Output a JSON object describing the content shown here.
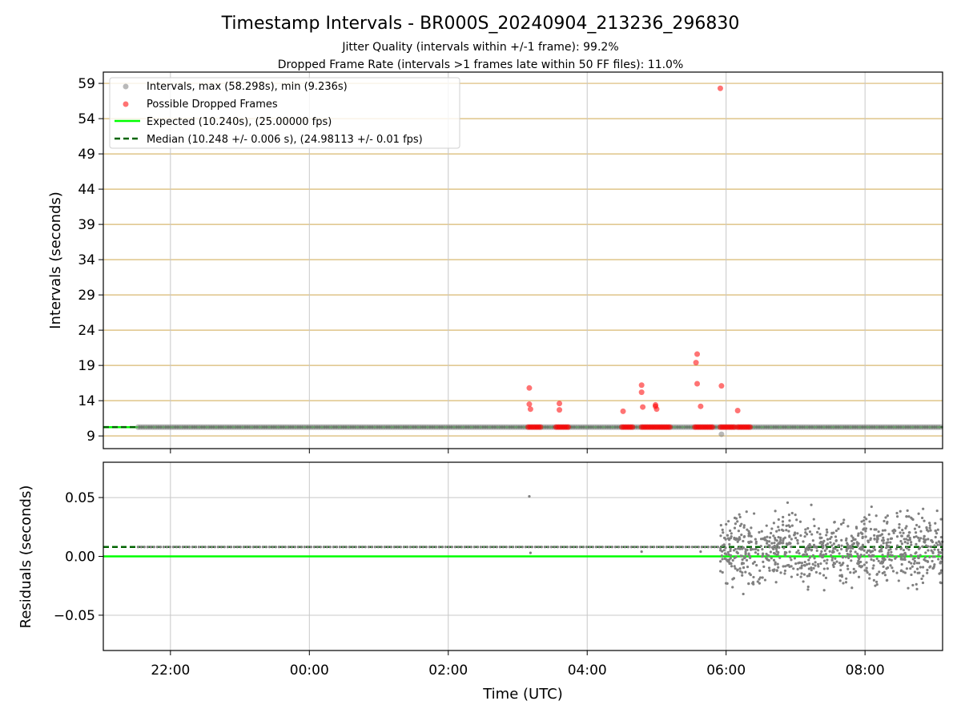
{
  "chart_data": [
    {
      "type": "scatter",
      "title": "Timestamp Intervals - BR000S_20240904_213236_296830",
      "subtitle_1": "Jitter Quality (intervals within +/-1 frame): 99.2%",
      "subtitle_2": "Dropped Frame Rate (intervals >1 frames late within 50 FF files): 11.0%",
      "xlabel": "",
      "ylabel": "Intervals (seconds)",
      "ylim": [
        7.2,
        60.6
      ],
      "yticks": [
        9,
        14,
        19,
        24,
        29,
        34,
        39,
        44,
        49,
        54,
        59
      ],
      "ytick_labels": [
        "9",
        "14",
        "19",
        "24",
        "29",
        "34",
        "39",
        "44",
        "49",
        "54",
        "59"
      ],
      "grid": true,
      "legend_position": "upper-left",
      "series": [
        {
          "name": "Intervals, max (58.298s), min (9.236s)",
          "color": "#808080",
          "x_range": [
            "21:32",
            "09:07"
          ],
          "baseline_value": 10.248
        },
        {
          "name": "Possible Dropped Frames",
          "color": "#ff0000",
          "points": [
            [
              "03:10",
              15.8
            ],
            [
              "03:10",
              13.5
            ],
            [
              "03:11",
              12.8
            ],
            [
              "03:36",
              13.6
            ],
            [
              "03:36",
              12.7
            ],
            [
              "04:31",
              12.5
            ],
            [
              "04:47",
              16.2
            ],
            [
              "04:47",
              15.2
            ],
            [
              "04:48",
              13.1
            ],
            [
              "04:59",
              13.4
            ],
            [
              "04:59",
              13.2
            ],
            [
              "05:00",
              12.8
            ],
            [
              "05:34",
              19.4
            ],
            [
              "05:35",
              20.6
            ],
            [
              "05:35",
              16.4
            ],
            [
              "05:38",
              13.2
            ],
            [
              "05:55",
              58.3
            ],
            [
              "05:56",
              16.1
            ],
            [
              "06:10",
              12.6
            ]
          ],
          "clusters": [
            [
              "03:09",
              "03:20"
            ],
            [
              "03:33",
              "03:44"
            ],
            [
              "04:30",
              "04:40"
            ],
            [
              "04:47",
              "05:12"
            ],
            [
              "05:33",
              "05:49"
            ],
            [
              "05:55",
              "06:08"
            ],
            [
              "06:10",
              "06:21"
            ]
          ],
          "cluster_value": 10.25
        },
        {
          "name": "Expected (10.240s), (25.00000 fps)",
          "color": "#00ff00",
          "style": "solid",
          "value": 10.24
        },
        {
          "name": "Median (10.248 +/- 0.006 s), (24.98113 +/- 0.01 fps)",
          "color": "#006400",
          "style": "dashed",
          "value": 10.248
        }
      ],
      "extra_points": [
        [
          "05:56",
          9.236
        ]
      ]
    },
    {
      "type": "scatter",
      "title": "",
      "xlabel": "Time (UTC)",
      "ylabel": "Residuals (seconds)",
      "ylim": [
        -0.08,
        0.08
      ],
      "yticks": [
        -0.05,
        0,
        0.05
      ],
      "ytick_labels": [
        "−0.05",
        "0.00",
        "0.05"
      ],
      "xticks": [
        "22:00",
        "00:00",
        "02:00",
        "04:00",
        "06:00",
        "08:00"
      ],
      "xlim": [
        "21:02",
        "09:07"
      ],
      "grid": true,
      "series": [
        {
          "name": "Residuals",
          "color": "#808080",
          "pre_0555_value": 0.008,
          "post_0555_range": [
            -0.036,
            0.049
          ],
          "notable_points": [
            [
              "03:10",
              0.051
            ],
            [
              "03:11",
              0.003
            ],
            [
              "04:47",
              0.004
            ],
            [
              "05:38",
              0.004
            ]
          ]
        },
        {
          "name": "Expected",
          "color": "#00ff00",
          "style": "solid",
          "value": 0.0
        },
        {
          "name": "Median",
          "color": "#006400",
          "style": "dashed",
          "value": 0.008
        }
      ]
    }
  ]
}
